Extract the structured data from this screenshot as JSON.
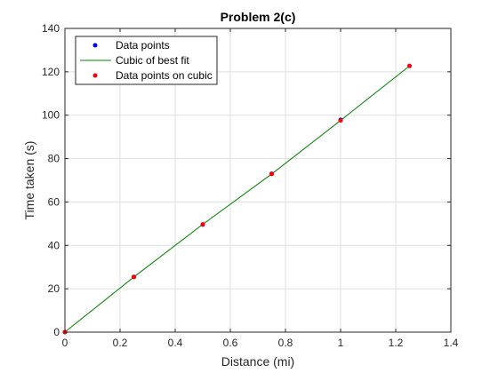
{
  "chart_data": {
    "type": "line",
    "title": "Problem 2(c)",
    "xlabel": "Distance (mi)",
    "ylabel": "Time taken (s)",
    "xlim": [
      0,
      1.4
    ],
    "ylim": [
      0,
      140
    ],
    "x_ticks": [
      "0",
      "0.2",
      "0.4",
      "0.6",
      "0.8",
      "1",
      "1.2",
      "1.4"
    ],
    "y_ticks": [
      "0",
      "20",
      "40",
      "60",
      "80",
      "100",
      "120",
      "140"
    ],
    "grid": true,
    "legend_position": "top-left",
    "series": [
      {
        "name": "Data points",
        "kind": "scatter",
        "color": "#0000ff",
        "x": [
          0,
          0.25,
          0.5,
          0.75,
          1.0,
          1.25
        ],
        "y": [
          0,
          25.5,
          49.6,
          73.0,
          97.9,
          122.7
        ]
      },
      {
        "name": "Cubic of best fit",
        "kind": "line",
        "color": "#008000",
        "x": [
          0,
          0.25,
          0.5,
          0.75,
          1.0,
          1.25
        ],
        "y": [
          0.05,
          25.4,
          49.7,
          72.9,
          97.6,
          122.7
        ]
      },
      {
        "name": "Data points on cubic",
        "kind": "scatter",
        "color": "#ff0000",
        "x": [
          0,
          0.25,
          0.5,
          0.75,
          1.0,
          1.25
        ],
        "y": [
          0.05,
          25.4,
          49.7,
          72.9,
          97.6,
          122.7
        ]
      }
    ]
  }
}
